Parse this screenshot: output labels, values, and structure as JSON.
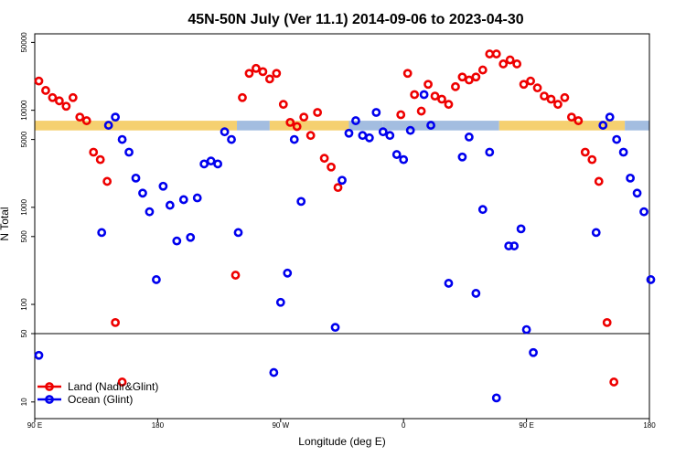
{
  "chart_data": {
    "type": "scatter",
    "title": "45N-50N July (Ver 11.1)   2014-09-06 to 2023-04-30",
    "xlabel": "Longitude (deg E)",
    "ylabel": "N Total",
    "x_ticks": [
      {
        "value": 90,
        "label": "90 E"
      },
      {
        "value": 180,
        "label": "180"
      },
      {
        "value": 270,
        "label": "90 W"
      },
      {
        "value": 360,
        "label": "0"
      },
      {
        "value": 450,
        "label": "90 E"
      },
      {
        "value": 540,
        "label": "180"
      }
    ],
    "xlim": [
      90,
      540
    ],
    "ylim": [
      7,
      55000
    ],
    "y_scale": "log",
    "y_break": 50,
    "y_ticks": [
      {
        "value": 10,
        "label": "10"
      },
      {
        "value": 50,
        "label": "50"
      },
      {
        "value": 100,
        "label": "100"
      },
      {
        "value": 500,
        "label": "500"
      },
      {
        "value": 1000,
        "label": "1000"
      },
      {
        "value": 5000,
        "label": "5000"
      },
      {
        "value": 10000,
        "label": "10000"
      },
      {
        "value": 50000,
        "label": "50000"
      }
    ],
    "band": {
      "y_low": 6200,
      "y_high": 7800,
      "colors": [
        "#f5d070",
        "#a3bde0"
      ]
    },
    "legend_position": "bottom-left",
    "series": [
      {
        "name": "Land (Nadir&Glint)",
        "color": "#ee0000",
        "points": [
          [
            93,
            20000
          ],
          [
            98,
            16000
          ],
          [
            103,
            13500
          ],
          [
            108,
            12500
          ],
          [
            113,
            11000
          ],
          [
            118,
            13500
          ],
          [
            123,
            8500
          ],
          [
            128,
            7800
          ],
          [
            133,
            3700
          ],
          [
            138,
            3100
          ],
          [
            143,
            1850
          ],
          [
            149,
            65
          ],
          [
            154,
            16
          ],
          [
            237,
            200
          ],
          [
            242,
            13500
          ],
          [
            247,
            24000
          ],
          [
            252,
            27000
          ],
          [
            257,
            25000
          ],
          [
            262,
            21000
          ],
          [
            267,
            24000
          ],
          [
            272,
            11500
          ],
          [
            277,
            7500
          ],
          [
            282,
            6800
          ],
          [
            287,
            8500
          ],
          [
            292,
            5500
          ],
          [
            297,
            9500
          ],
          [
            302,
            3200
          ],
          [
            307,
            2600
          ],
          [
            312,
            1600
          ],
          [
            358,
            9000
          ],
          [
            363,
            24000
          ],
          [
            368,
            14500
          ],
          [
            373,
            9800
          ],
          [
            378,
            18500
          ],
          [
            383,
            14000
          ],
          [
            388,
            13000
          ],
          [
            393,
            11500
          ],
          [
            398,
            17500
          ],
          [
            403,
            22000
          ],
          [
            408,
            20500
          ],
          [
            413,
            22000
          ],
          [
            418,
            26000
          ],
          [
            423,
            38000
          ],
          [
            428,
            38000
          ],
          [
            433,
            30000
          ],
          [
            438,
            33000
          ],
          [
            443,
            30000
          ],
          [
            448,
            18500
          ],
          [
            453,
            20000
          ],
          [
            458,
            17000
          ],
          [
            463,
            14000
          ],
          [
            468,
            13000
          ],
          [
            473,
            11500
          ],
          [
            478,
            13500
          ],
          [
            483,
            8500
          ],
          [
            488,
            7800
          ],
          [
            493,
            3700
          ],
          [
            498,
            3100
          ],
          [
            503,
            1850
          ],
          [
            509,
            65
          ],
          [
            514,
            16
          ]
        ]
      },
      {
        "name": "Ocean (Glint)",
        "color": "#0000ee",
        "points": [
          [
            93,
            30
          ],
          [
            139,
            550
          ],
          [
            144,
            7000
          ],
          [
            149,
            8500
          ],
          [
            154,
            5000
          ],
          [
            159,
            3700
          ],
          [
            164,
            2000
          ],
          [
            169,
            1400
          ],
          [
            174,
            900
          ],
          [
            179,
            180
          ],
          [
            184,
            1650
          ],
          [
            189,
            1050
          ],
          [
            194,
            450
          ],
          [
            199,
            1200
          ],
          [
            204,
            490
          ],
          [
            209,
            1250
          ],
          [
            214,
            2800
          ],
          [
            219,
            3000
          ],
          [
            224,
            2800
          ],
          [
            229,
            6000
          ],
          [
            234,
            5000
          ],
          [
            239,
            550
          ],
          [
            265,
            20
          ],
          [
            270,
            105
          ],
          [
            275,
            210
          ],
          [
            280,
            5000
          ],
          [
            285,
            1150
          ],
          [
            310,
            58
          ],
          [
            315,
            1900
          ],
          [
            320,
            5800
          ],
          [
            325,
            7800
          ],
          [
            330,
            5500
          ],
          [
            335,
            5200
          ],
          [
            340,
            9500
          ],
          [
            345,
            6000
          ],
          [
            350,
            5500
          ],
          [
            355,
            3500
          ],
          [
            360,
            3100
          ],
          [
            365,
            6200
          ],
          [
            375,
            14500
          ],
          [
            380,
            7000
          ],
          [
            393,
            165
          ],
          [
            403,
            3300
          ],
          [
            408,
            5300
          ],
          [
            413,
            130
          ],
          [
            418,
            950
          ],
          [
            423,
            3700
          ],
          [
            428,
            11
          ],
          [
            437,
            400
          ],
          [
            441,
            400
          ],
          [
            446,
            600
          ],
          [
            450,
            55
          ],
          [
            455,
            32
          ],
          [
            501,
            550
          ],
          [
            506,
            7000
          ],
          [
            511,
            8500
          ],
          [
            516,
            5000
          ],
          [
            521,
            3700
          ],
          [
            526,
            2000
          ],
          [
            531,
            1400
          ],
          [
            536,
            900
          ],
          [
            541,
            180
          ]
        ]
      }
    ]
  }
}
